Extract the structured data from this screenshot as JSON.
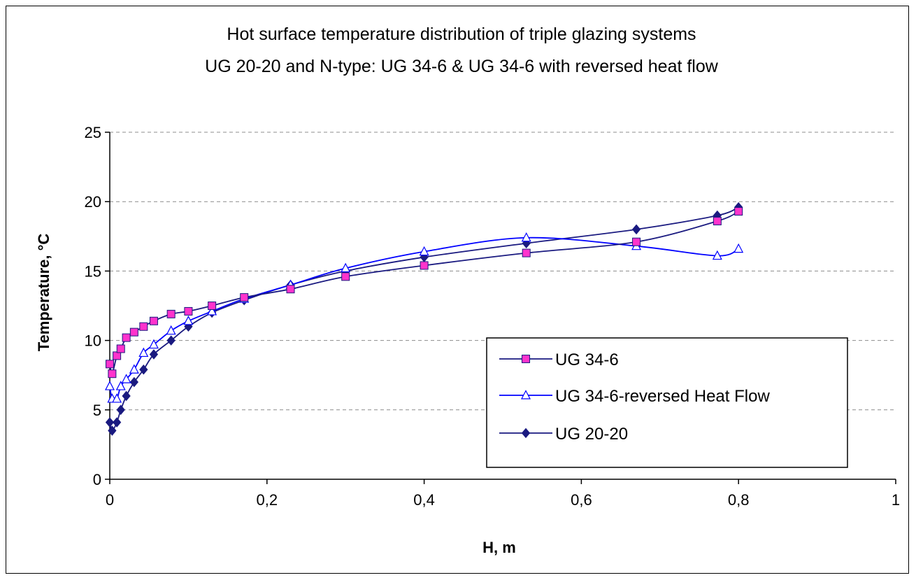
{
  "chart_data": {
    "type": "line",
    "title": "Hot surface temperature distribution of triple glazing systems",
    "subtitle": "UG 20-20 and N-type: UG 34-6 & UG 34-6 with reversed heat flow",
    "xlabel": "H, m",
    "ylabel": "Temperature, °C",
    "xlim": [
      0,
      1
    ],
    "ylim": [
      0,
      25
    ],
    "x_ticks": [
      0,
      0.2,
      0.4,
      0.6,
      0.8,
      1
    ],
    "x_tick_labels": [
      "0",
      "0,2",
      "0,4",
      "0,6",
      "0,8",
      "1"
    ],
    "y_ticks": [
      0,
      5,
      10,
      15,
      20,
      25
    ],
    "y_tick_labels": [
      "0",
      "5",
      "10",
      "15",
      "20",
      "25"
    ],
    "grid": "horizontal dashed",
    "legend_position": "right-center",
    "series": [
      {
        "name": "UG 34-6",
        "marker": "square",
        "color": "#1a1a80",
        "marker_fill": "#ff33cc",
        "x": [
          0,
          0.003,
          0.009,
          0.014,
          0.021,
          0.031,
          0.043,
          0.056,
          0.078,
          0.1,
          0.13,
          0.171,
          0.23,
          0.3,
          0.4,
          0.53,
          0.67,
          0.773,
          0.8
        ],
        "y": [
          8.3,
          7.6,
          8.9,
          9.4,
          10.2,
          10.6,
          11.0,
          11.4,
          11.9,
          12.1,
          12.5,
          13.1,
          13.7,
          14.6,
          15.4,
          16.3,
          17.1,
          18.6,
          19.3
        ]
      },
      {
        "name": "UG 34-6-reversed Heat Flow",
        "marker": "triangle",
        "color": "#0000ff",
        "marker_fill": "#ffffff",
        "x": [
          0,
          0.003,
          0.009,
          0.014,
          0.021,
          0.031,
          0.043,
          0.056,
          0.078,
          0.1,
          0.13,
          0.171,
          0.23,
          0.3,
          0.4,
          0.53,
          0.67,
          0.773,
          0.8
        ],
        "y": [
          6.7,
          5.8,
          5.8,
          6.7,
          7.2,
          7.9,
          9.1,
          9.7,
          10.7,
          11.4,
          12.1,
          13.0,
          14.0,
          15.2,
          16.4,
          17.4,
          16.8,
          16.1,
          16.6
        ]
      },
      {
        "name": "UG 20-20",
        "marker": "diamond",
        "color": "#1a1a80",
        "marker_fill": "#1a1a80",
        "x": [
          0,
          0.003,
          0.009,
          0.014,
          0.021,
          0.031,
          0.043,
          0.056,
          0.078,
          0.1,
          0.13,
          0.171,
          0.23,
          0.3,
          0.4,
          0.53,
          0.67,
          0.773,
          0.8
        ],
        "y": [
          4.1,
          3.5,
          4.1,
          5.0,
          6.0,
          7.0,
          7.9,
          9.0,
          10.0,
          11.0,
          12.0,
          12.9,
          14.0,
          15.0,
          16.0,
          17.0,
          18.0,
          19.0,
          19.6
        ]
      }
    ]
  }
}
